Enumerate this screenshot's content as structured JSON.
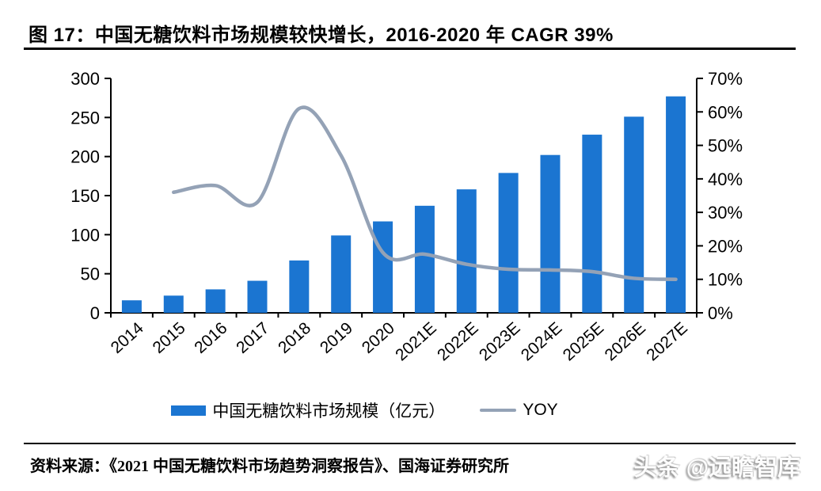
{
  "page": {
    "title": "图 17：中国无糖饮料市场规模较快增长，2016-2020 年 CAGR 39%",
    "source": "资料来源：《2021 中国无糖饮料市场趋势洞察报告》、国海证券研究所",
    "watermark": "头条 @远瞻智库"
  },
  "chart_data": {
    "type": "combo",
    "title": "图 17：中国无糖饮料市场规模较快增长，2016-2020 年 CAGR 39%",
    "categories": [
      "2014",
      "2015",
      "2016",
      "2017",
      "2018",
      "2019",
      "2020",
      "2021E",
      "2022E",
      "2023E",
      "2024E",
      "2025E",
      "2026E",
      "2027E"
    ],
    "series": [
      {
        "name": "中国无糖饮料市场规模（亿元）",
        "type": "bar",
        "axis": "left",
        "color": "#1B75D1",
        "values": [
          16,
          22,
          30,
          41,
          67,
          99,
          117,
          137,
          158,
          179,
          202,
          228,
          251,
          277
        ]
      },
      {
        "name": "YOY",
        "type": "line",
        "axis": "right",
        "color": "#94A2B6",
        "values": [
          null,
          36,
          38,
          33,
          61,
          47,
          18,
          17.5,
          14.5,
          13,
          12.8,
          12.3,
          10.3,
          10
        ]
      }
    ],
    "left_axis": {
      "ticks": [
        0,
        50,
        100,
        150,
        200,
        250,
        300
      ],
      "max": 300,
      "suffix": ""
    },
    "right_axis": {
      "ticks": [
        0,
        10,
        20,
        30,
        40,
        50,
        60,
        70
      ],
      "max": 70,
      "suffix": "%"
    },
    "grid": false,
    "legend_position": "bottom",
    "xlabel": "",
    "ylabel_left": "亿元",
    "ylabel_right": "%"
  }
}
